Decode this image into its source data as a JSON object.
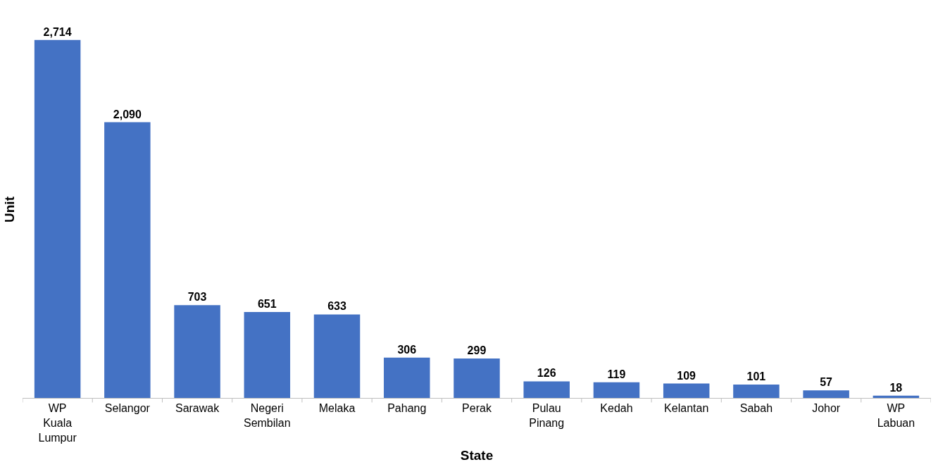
{
  "chart_data": {
    "type": "bar",
    "xlabel": "State",
    "ylabel": "Unit",
    "categories": [
      "WP Kuala Lumpur",
      "Selangor",
      "Sarawak",
      "Negeri Sembilan",
      "Melaka",
      "Pahang",
      "Perak",
      "Pulau Pinang",
      "Kedah",
      "Kelantan",
      "Sabah",
      "Johor",
      "WP Labuan"
    ],
    "values": [
      2714,
      2090,
      703,
      651,
      633,
      306,
      299,
      126,
      119,
      109,
      101,
      57,
      18
    ],
    "value_labels": [
      "2,714",
      "2,090",
      "703",
      "651",
      "633",
      "306",
      "299",
      "126",
      "119",
      "109",
      "101",
      "57",
      "18"
    ],
    "color": "#4472c4"
  }
}
